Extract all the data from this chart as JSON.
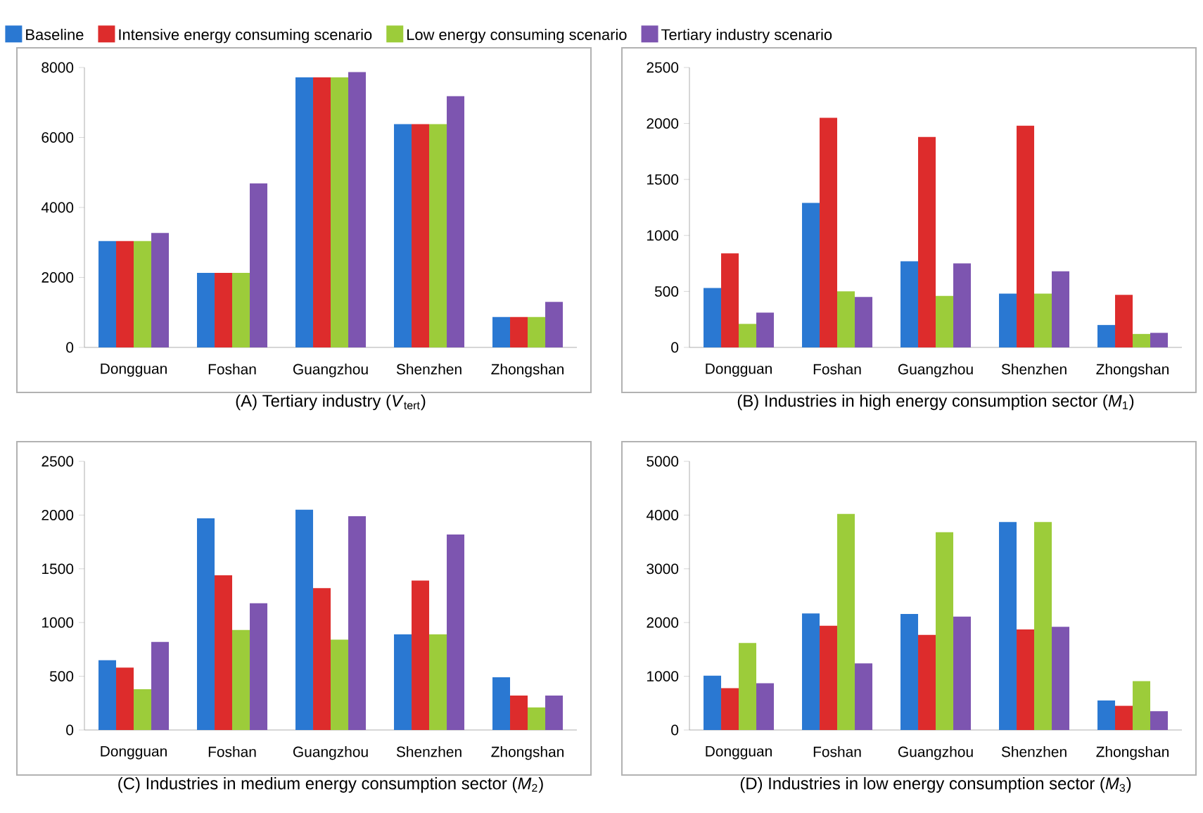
{
  "chart_data": [
    {
      "type": "bar",
      "title": "(A) Tertiary industry (*V*$_{tert}$)",
      "categories": [
        "Dongguan",
        "Foshan",
        "Guangzhou",
        "Shenzhen",
        "Zhongshan"
      ],
      "ylim": [
        0,
        8000
      ],
      "yticks": [
        0,
        2000,
        4000,
        6000,
        8000
      ],
      "legend": "top",
      "series": [
        {
          "name": "Baseline",
          "color": "#2a78d2",
          "values": [
            3040,
            2130,
            7720,
            6380,
            870
          ]
        },
        {
          "name": "Intensive energy consuming scenario",
          "color": "#dd2c2c",
          "values": [
            3040,
            2130,
            7720,
            6380,
            870
          ]
        },
        {
          "name": "Low energy consuming scenario",
          "color": "#9ccc3a",
          "values": [
            3040,
            2130,
            7720,
            6380,
            870
          ]
        },
        {
          "name": "Tertiary industry scenario",
          "color": "#7d55b0",
          "values": [
            3270,
            4690,
            7870,
            7180,
            1300
          ]
        }
      ]
    },
    {
      "type": "bar",
      "title": "(B) Industries in high energy consumption sector (*M*$_{1}$)",
      "categories": [
        "Dongguan",
        "Foshan",
        "Guangzhou",
        "Shenzhen",
        "Zhongshan"
      ],
      "ylim": [
        0,
        2500
      ],
      "yticks": [
        0,
        500,
        1000,
        1500,
        2000,
        2500
      ],
      "series": [
        {
          "color": "#2a78d2",
          "values": [
            530,
            1290,
            770,
            480,
            200
          ]
        },
        {
          "color": "#dd2c2c",
          "values": [
            840,
            2050,
            1880,
            1980,
            470
          ]
        },
        {
          "color": "#9ccc3a",
          "values": [
            210,
            500,
            460,
            480,
            120
          ]
        },
        {
          "color": "#7d55b0",
          "values": [
            310,
            450,
            750,
            680,
            130
          ]
        }
      ]
    },
    {
      "type": "bar",
      "title": "(C) Industries in medium energy consumption sector (*M*$_{2}$)",
      "categories": [
        "Dongguan",
        "Foshan",
        "Guangzhou",
        "Shenzhen",
        "Zhongshan"
      ],
      "ylim": [
        0,
        2500
      ],
      "yticks": [
        0,
        500,
        1000,
        1500,
        2000,
        2500
      ],
      "series": [
        {
          "color": "#2a78d2",
          "values": [
            650,
            1970,
            2050,
            890,
            490
          ]
        },
        {
          "color": "#dd2c2c",
          "values": [
            580,
            1440,
            1320,
            1390,
            320
          ]
        },
        {
          "color": "#9ccc3a",
          "values": [
            380,
            930,
            840,
            890,
            210
          ]
        },
        {
          "color": "#7d55b0",
          "values": [
            820,
            1180,
            1990,
            1820,
            320
          ]
        }
      ]
    },
    {
      "type": "bar",
      "title": "(D) Industries in low energy consumption sector (*M*$_{3}$)",
      "categories": [
        "Dongguan",
        "Foshan",
        "Guangzhou",
        "Shenzhen",
        "Zhongshan"
      ],
      "ylim": [
        0,
        5000
      ],
      "yticks": [
        0,
        1000,
        2000,
        3000,
        4000,
        5000
      ],
      "series": [
        {
          "color": "#2a78d2",
          "values": [
            1010,
            2170,
            2160,
            3870,
            550
          ]
        },
        {
          "color": "#dd2c2c",
          "values": [
            780,
            1940,
            1770,
            1870,
            450
          ]
        },
        {
          "color": "#9ccc3a",
          "values": [
            1620,
            4020,
            3680,
            3870,
            910
          ]
        },
        {
          "color": "#7d55b0",
          "values": [
            870,
            1240,
            2110,
            1920,
            350
          ]
        }
      ]
    }
  ]
}
